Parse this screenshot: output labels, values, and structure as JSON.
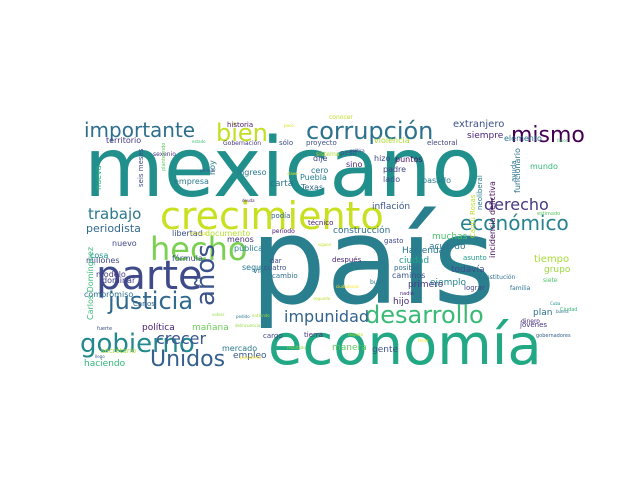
{
  "words": [
    {
      "text": "país",
      "color": "#2a7f8e"
    },
    {
      "text": "mexicano",
      "color": "#218f8b"
    },
    {
      "text": "economía",
      "color": "#22a884"
    },
    {
      "text": "crecimiento",
      "color": "#c8e020"
    },
    {
      "text": "parte",
      "color": "#3e4a89"
    },
    {
      "text": "hecho",
      "color": "#7ad151"
    },
    {
      "text": "corrupción",
      "color": "#2c728e"
    },
    {
      "text": "gobierno",
      "color": "#23898e"
    },
    {
      "text": "desarrollo",
      "color": "#3aba76"
    },
    {
      "text": "justicia",
      "color": "#31688e"
    },
    {
      "text": "años",
      "color": "#3b528b"
    },
    {
      "text": "Unidos",
      "color": "#35608d"
    },
    {
      "text": "importante",
      "color": "#2e6f8e"
    },
    {
      "text": "bien",
      "color": "#c2df23"
    },
    {
      "text": "mismo",
      "color": "#440154"
    },
    {
      "text": "económico",
      "color": "#26828e"
    },
    {
      "text": "derecho",
      "color": "#453781"
    },
    {
      "text": "impunidad",
      "color": "#33638d"
    },
    {
      "text": "crecer",
      "color": "#39568c"
    },
    {
      "text": "trabajo",
      "color": "#2a788e"
    },
    {
      "text": "periodista",
      "color": "#30698e"
    },
    {
      "text": "extranjero",
      "color": "#3b528b"
    },
    {
      "text": "siempre",
      "color": "#482677"
    },
    {
      "text": "elemento",
      "color": "#2d708e"
    },
    {
      "text": "inflación",
      "color": "#39568c"
    },
    {
      "text": "construcción",
      "color": "#2e6e8e"
    },
    {
      "text": "Hacienda",
      "color": "#2a778e"
    },
    {
      "text": "ciudad",
      "color": "#1fa088"
    },
    {
      "text": "acuerdo",
      "color": "#2b758e"
    },
    {
      "text": "muchas",
      "color": "#4ac16d"
    },
    {
      "text": "todavía",
      "color": "#3c4f8a"
    },
    {
      "text": "tiempo",
      "color": "#a8db34"
    },
    {
      "text": "grupo",
      "color": "#9dd93b"
    },
    {
      "text": "ejemplo",
      "color": "#25848e"
    },
    {
      "text": "primero",
      "color": "#443a83"
    },
    {
      "text": "hijo",
      "color": "#472d7b"
    },
    {
      "text": "plan",
      "color": "#2d718e"
    },
    {
      "text": "manera",
      "color": "#5ec962"
    },
    {
      "text": "gente",
      "color": "#3b528b"
    },
    {
      "text": "política",
      "color": "#482173"
    },
    {
      "text": "mañana",
      "color": "#6ccd5a"
    },
    {
      "text": "haciendo",
      "color": "#32b67a"
    },
    {
      "text": "empleo",
      "color": "#38598c"
    },
    {
      "text": "mercado",
      "color": "#2a788e"
    },
    {
      "text": "millones",
      "color": "#3f4788"
    },
    {
      "text": "compromiso",
      "color": "#2c728e"
    },
    {
      "text": "modelo",
      "color": "#453882"
    },
    {
      "text": "dominar",
      "color": "#433e85"
    },
    {
      "text": "nuevo",
      "color": "#3e4989"
    },
    {
      "text": "cosa",
      "color": "#1f948c"
    },
    {
      "text": "fórmula",
      "color": "#3b518b"
    },
    {
      "text": "menos",
      "color": "#46307e"
    },
    {
      "text": "pública",
      "color": "#277f8e"
    },
    {
      "text": "seguir",
      "color": "#29798e"
    },
    {
      "text": "libertad",
      "color": "#3c508b"
    },
    {
      "text": "documento",
      "color": "#b5de2b"
    },
    {
      "text": "empresa",
      "color": "#2a788e"
    },
    {
      "text": "carta",
      "color": "#2e6f8e"
    },
    {
      "text": "Texas",
      "color": "#2f6b8e"
    },
    {
      "text": "Puebla",
      "color": "#26828e"
    },
    {
      "text": "ingreso",
      "color": "#2a788e"
    },
    {
      "text": "hoy",
      "color": "#287c8e"
    },
    {
      "text": "nueva",
      "color": "#29af7f"
    },
    {
      "text": "territorio",
      "color": "#443983"
    },
    {
      "text": "dije",
      "color": "#3e4a89"
    },
    {
      "text": "cero",
      "color": "#2b748e"
    },
    {
      "text": "sino",
      "color": "#482475"
    },
    {
      "text": "lado",
      "color": "#3d4d8a"
    },
    {
      "text": "padre",
      "color": "#414487"
    },
    {
      "text": "pasado",
      "color": "#287d8e"
    },
    {
      "text": "mundo",
      "color": "#35b779"
    },
    {
      "text": "funcionario",
      "color": "#2d708e"
    },
    {
      "text": "hizo",
      "color": "#3f4889"
    },
    {
      "text": "peso",
      "color": "#3b528b"
    },
    {
      "text": "proyecto",
      "color": "#3b528b"
    },
    {
      "text": "sólo",
      "color": "#3e4989"
    },
    {
      "text": "Gobernación",
      "color": "#453781"
    },
    {
      "text": "historia",
      "color": "#481769"
    },
    {
      "text": "conocer",
      "color": "#bddf26"
    },
    {
      "text": "electoral",
      "color": "#414487"
    },
    {
      "text": "violencia",
      "color": "#addc30"
    },
    {
      "text": "puntos",
      "color": "#470d60"
    },
    {
      "text": "ayuda",
      "color": "#2c738e"
    },
    {
      "text": "sexenio",
      "color": "#46327e"
    },
    {
      "text": "seis meses",
      "color": "#3c4f8a"
    },
    {
      "text": "Carlos",
      "color": "#34608d"
    },
    {
      "text": "Carlos Domínguez",
      "color": "#35b779"
    },
    {
      "text": "vía",
      "color": "#2a788e"
    },
    {
      "text": "cuatro",
      "color": "#3b528b"
    },
    {
      "text": "dar",
      "color": "#3f4889"
    },
    {
      "text": "cambio",
      "color": "#2c728e"
    },
    {
      "text": "tierra",
      "color": "#472f7d"
    },
    {
      "text": "técnico",
      "color": "#481a6c"
    },
    {
      "text": "después",
      "color": "#482576"
    },
    {
      "text": "caminos",
      "color": "#3b528b"
    },
    {
      "text": "posible",
      "color": "#2f6c8e"
    },
    {
      "text": "gasto",
      "color": "#3f4889"
    },
    {
      "text": "asunto",
      "color": "#1f988b"
    },
    {
      "text": "lograr",
      "color": "#414487"
    },
    {
      "text": "Constitución",
      "color": "#2c728e"
    },
    {
      "text": "siete",
      "color": "#4ec36b"
    },
    {
      "text": "familia",
      "color": "#2b758e"
    },
    {
      "text": "jóvenes",
      "color": "#46337f"
    },
    {
      "text": "dinero",
      "color": "#482979"
    },
    {
      "text": "secretario",
      "color": "#a5db36"
    },
    {
      "text": "buen",
      "color": "#2b748e"
    },
    {
      "text": "cargo",
      "color": "#3f4788"
    },
    {
      "text": "incidencia delictiva",
      "color": "#460b5e"
    },
    {
      "text": "neoliberal",
      "color": "#277e8e"
    },
    {
      "text": "Cantú Rosas",
      "color": "#bddf26"
    },
    {
      "text": "periodo",
      "color": "#481668"
    },
    {
      "text": "podía",
      "color": "#31668e"
    },
    {
      "text": "estimado",
      "color": "#5ec962"
    },
    {
      "text": "Ciudad",
      "color": "#35b779"
    },
    {
      "text": "favor",
      "color": "#4ac16d"
    },
    {
      "text": "fuerte",
      "color": "#3b528b"
    },
    {
      "text": "llego",
      "color": "#3b528b"
    },
    {
      "text": "nadie",
      "color": "#472d7b"
    },
    {
      "text": "gobernadores",
      "color": "#34618d"
    },
    {
      "text": "resultado",
      "color": "#8fd744"
    },
    {
      "text": "buena",
      "color": "#2c738e"
    },
    {
      "text": "siguen",
      "color": "#c2df23"
    },
    {
      "text": "segundo",
      "color": "#b8de29"
    },
    {
      "text": "sistema",
      "color": "#addc30"
    },
    {
      "text": "permitir",
      "color": "#3a548c"
    },
    {
      "text": "deuda",
      "color": "#481b6d"
    },
    {
      "text": "estado",
      "color": "#3dbc74"
    },
    {
      "text": "poco",
      "color": "#d8e219"
    },
    {
      "text": "pedido",
      "color": "#2a788e"
    },
    {
      "text": "planteando",
      "color": "#5ec962"
    },
    {
      "text": "entregar",
      "color": "#dde318"
    },
    {
      "text": "clave",
      "color": "#fde725"
    },
    {
      "text": "ciudadanos",
      "color": "#fde725"
    },
    {
      "text": "presidente",
      "color": "#fde725"
    },
    {
      "text": "respeto",
      "color": "#b5de2b"
    },
    {
      "text": "entiendo",
      "color": "#9fda3a"
    },
    {
      "text": "volver",
      "color": "#95d840"
    },
    {
      "text": "delincuencia",
      "color": "#95d840"
    },
    {
      "text": "política2",
      "color": "#433e85"
    },
    {
      "text": "Cuba",
      "color": "#21918c"
    },
    {
      "text": "tener",
      "color": "#fde725"
    }
  ]
}
